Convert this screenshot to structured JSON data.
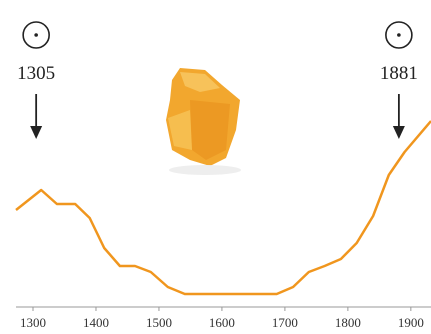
{
  "chart_data": {
    "type": "line",
    "x": [
      1273,
      1313,
      1338,
      1367,
      1390,
      1413,
      1438,
      1462,
      1487,
      1514,
      1541,
      1687,
      1713,
      1738,
      1763,
      1789,
      1814,
      1840,
      1865,
      1890,
      1932
    ],
    "values": [
      97,
      117,
      103,
      103,
      89,
      59,
      41,
      41,
      35,
      20,
      13,
      13,
      20,
      35,
      41,
      48,
      64,
      91,
      132,
      155,
      186
    ],
    "color": "#f0961e",
    "xlim": [
      1273,
      1932
    ],
    "xticks": [
      1300,
      1400,
      1500,
      1600,
      1700,
      1800,
      1900
    ],
    "ylim": [
      0,
      200
    ],
    "annotations": [
      1305,
      1881
    ]
  }
}
